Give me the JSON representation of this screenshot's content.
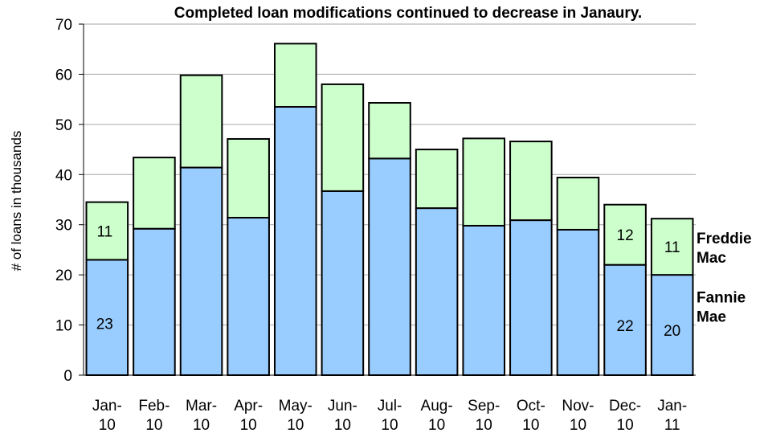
{
  "chart_data": {
    "type": "bar",
    "stacked": true,
    "title": "Completed loan modifications continued to decrease in Janaury.",
    "xlabel": "",
    "ylabel": "# of loans in thousands",
    "ylim": [
      0,
      70
    ],
    "yticks": [
      "0",
      "10",
      "20",
      "30",
      "40",
      "50",
      "60",
      "70"
    ],
    "grid": true,
    "categories": [
      [
        "Jan-",
        "10"
      ],
      [
        "Feb-",
        "10"
      ],
      [
        "Mar-",
        "10"
      ],
      [
        "Apr-",
        "10"
      ],
      [
        "May-",
        "10"
      ],
      [
        "Jun-",
        "10"
      ],
      [
        "Jul-",
        "10"
      ],
      [
        "Aug-",
        "10"
      ],
      [
        "Sep-",
        "10"
      ],
      [
        "Oct-",
        "10"
      ],
      [
        "Nov-",
        "10"
      ],
      [
        "Dec-",
        "10"
      ],
      [
        "Jan-",
        "11"
      ]
    ],
    "series": [
      {
        "name": [
          "Fannie",
          "Mae"
        ],
        "color": "#99ccff",
        "values": [
          23,
          29.2,
          41.4,
          31.4,
          53.5,
          36.7,
          43.2,
          33.3,
          29.8,
          30.9,
          29.0,
          22,
          20
        ],
        "labels": [
          {
            "index": 0,
            "text": "23"
          },
          {
            "index": 11,
            "text": "22"
          },
          {
            "index": 12,
            "text": "20"
          }
        ]
      },
      {
        "name": [
          "Freddie",
          "Mac"
        ],
        "color": "#ccffcc",
        "values": [
          11.5,
          14.2,
          18.4,
          15.7,
          12.6,
          21.3,
          11.1,
          11.7,
          17.4,
          15.7,
          10.4,
          12,
          11.2
        ],
        "labels": [
          {
            "index": 0,
            "text": "11"
          },
          {
            "index": 11,
            "text": "12"
          },
          {
            "index": 12,
            "text": "11"
          }
        ]
      }
    ],
    "legend_placement": "right"
  }
}
